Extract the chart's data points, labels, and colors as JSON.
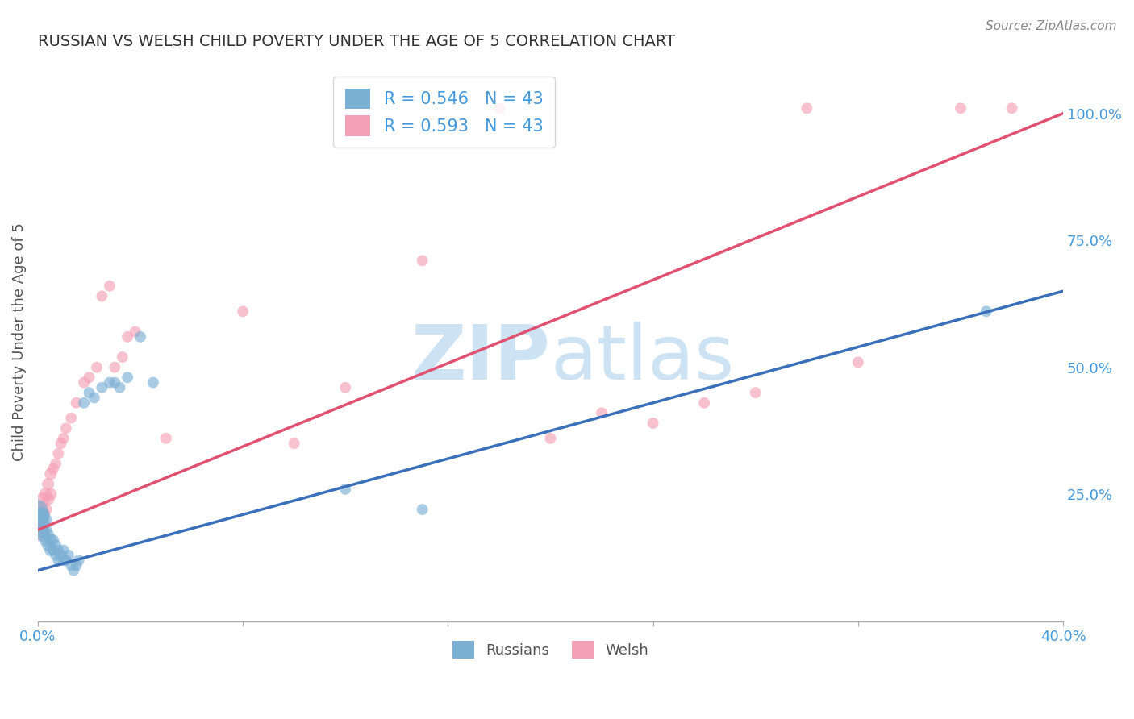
{
  "title": "RUSSIAN VS WELSH CHILD POVERTY UNDER THE AGE OF 5 CORRELATION CHART",
  "source": "Source: ZipAtlas.com",
  "ylabel": "Child Poverty Under the Age of 5",
  "x_min": 0.0,
  "x_max": 0.4,
  "y_min": 0.0,
  "y_max": 1.1,
  "legend_label_russians": "Russians",
  "legend_label_welsh": "Welsh",
  "russian_color": "#7bafd4",
  "welsh_color": "#f4a0b5",
  "russian_line_color": "#3a6fba",
  "welsh_line_color": "#e05070",
  "grid_color": "#cccccc",
  "title_color": "#333333",
  "axis_label_color": "#555555",
  "tick_color": "#4499dd",
  "russians_x": [
    0.0,
    0.0,
    0.001,
    0.001,
    0.001,
    0.002,
    0.002,
    0.002,
    0.003,
    0.003,
    0.003,
    0.004,
    0.004,
    0.005,
    0.005,
    0.006,
    0.006,
    0.007,
    0.007,
    0.008,
    0.008,
    0.009,
    0.01,
    0.01,
    0.011,
    0.012,
    0.013,
    0.014,
    0.015,
    0.016,
    0.018,
    0.02,
    0.022,
    0.025,
    0.028,
    0.03,
    0.032,
    0.035,
    0.04,
    0.045,
    0.12,
    0.15,
    0.37
  ],
  "russians_y": [
    0.2,
    0.22,
    0.18,
    0.2,
    0.21,
    0.17,
    0.19,
    0.21,
    0.16,
    0.18,
    0.2,
    0.15,
    0.17,
    0.14,
    0.16,
    0.14,
    0.16,
    0.13,
    0.15,
    0.12,
    0.14,
    0.13,
    0.12,
    0.14,
    0.12,
    0.13,
    0.11,
    0.1,
    0.11,
    0.12,
    0.43,
    0.45,
    0.44,
    0.46,
    0.47,
    0.47,
    0.46,
    0.48,
    0.56,
    0.47,
    0.26,
    0.22,
    0.61
  ],
  "russians_size": [
    400,
    300,
    200,
    200,
    200,
    150,
    150,
    150,
    130,
    130,
    130,
    120,
    120,
    120,
    120,
    100,
    100,
    100,
    100,
    100,
    100,
    100,
    100,
    100,
    100,
    100,
    100,
    100,
    100,
    100,
    100,
    100,
    100,
    100,
    100,
    100,
    100,
    100,
    100,
    100,
    100,
    100,
    100
  ],
  "welsh_x": [
    0.0,
    0.001,
    0.001,
    0.002,
    0.002,
    0.003,
    0.003,
    0.004,
    0.004,
    0.005,
    0.005,
    0.006,
    0.007,
    0.008,
    0.009,
    0.01,
    0.011,
    0.013,
    0.015,
    0.018,
    0.02,
    0.023,
    0.025,
    0.028,
    0.03,
    0.033,
    0.035,
    0.038,
    0.05,
    0.08,
    0.1,
    0.12,
    0.15,
    0.18,
    0.2,
    0.22,
    0.24,
    0.26,
    0.28,
    0.3,
    0.32,
    0.36,
    0.38
  ],
  "welsh_y": [
    0.18,
    0.2,
    0.22,
    0.21,
    0.24,
    0.22,
    0.25,
    0.24,
    0.27,
    0.25,
    0.29,
    0.3,
    0.31,
    0.33,
    0.35,
    0.36,
    0.38,
    0.4,
    0.43,
    0.47,
    0.48,
    0.5,
    0.64,
    0.66,
    0.5,
    0.52,
    0.56,
    0.57,
    0.36,
    0.61,
    0.35,
    0.46,
    0.71,
    1.01,
    0.36,
    0.41,
    0.39,
    0.43,
    0.45,
    1.01,
    0.51,
    1.01,
    1.01
  ],
  "welsh_size": [
    400,
    200,
    200,
    150,
    150,
    130,
    130,
    120,
    120,
    120,
    120,
    100,
    100,
    100,
    100,
    100,
    100,
    100,
    100,
    100,
    100,
    100,
    100,
    100,
    100,
    100,
    100,
    100,
    100,
    100,
    100,
    100,
    100,
    100,
    100,
    100,
    100,
    100,
    100,
    100,
    100,
    100,
    100
  ]
}
